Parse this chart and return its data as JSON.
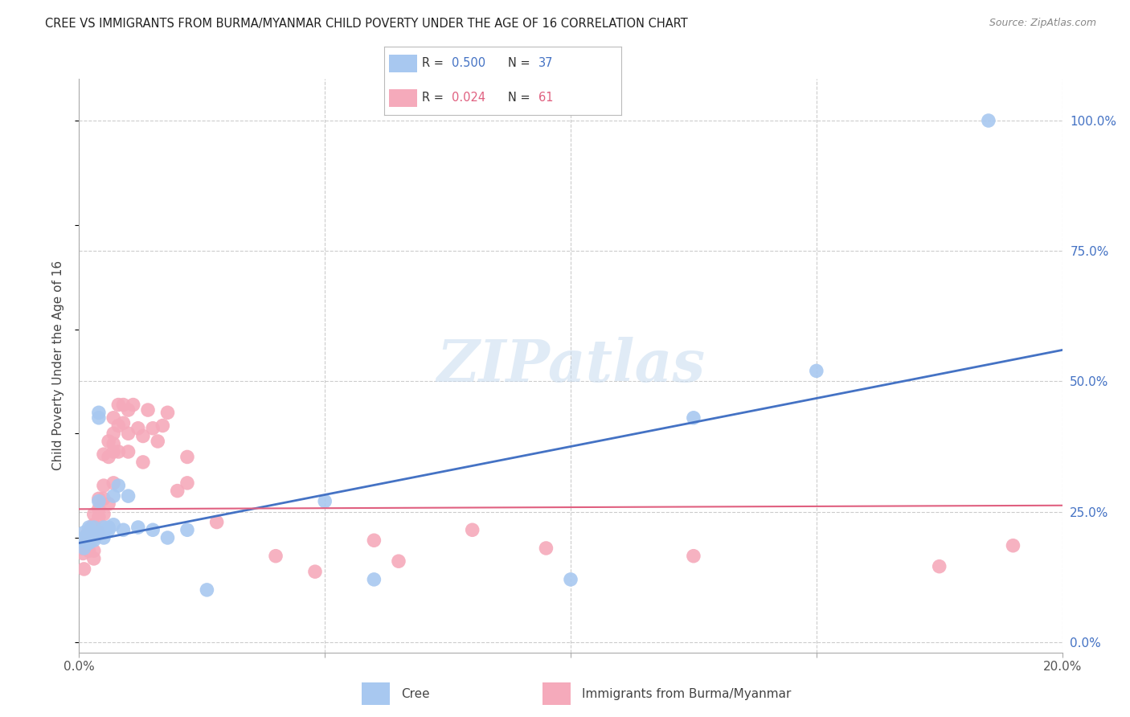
{
  "title": "CREE VS IMMIGRANTS FROM BURMA/MYANMAR CHILD POVERTY UNDER THE AGE OF 16 CORRELATION CHART",
  "source": "Source: ZipAtlas.com",
  "ylabel": "Child Poverty Under the Age of 16",
  "xlim": [
    0.0,
    0.2
  ],
  "ylim": [
    -0.02,
    1.08
  ],
  "yticks_right": [
    0.0,
    0.25,
    0.5,
    0.75,
    1.0
  ],
  "ytick_labels_right": [
    "0.0%",
    "25.0%",
    "50.0%",
    "75.0%",
    "100.0%"
  ],
  "cree_color": "#A8C8F0",
  "burma_color": "#F5AABB",
  "cree_line_color": "#4472C4",
  "burma_line_color": "#E06080",
  "background_color": "#FFFFFF",
  "grid_color": "#CCCCCC",
  "watermark_text": "ZIPatlas",
  "cree_R": "0.500",
  "cree_N": "37",
  "burma_R": "0.024",
  "burma_N": "61",
  "cree_line_x": [
    0.0,
    0.2
  ],
  "cree_line_y": [
    0.19,
    0.56
  ],
  "burma_line_x": [
    0.0,
    0.2
  ],
  "burma_line_y": [
    0.255,
    0.262
  ],
  "cree_scatter_x": [
    0.0005,
    0.001,
    0.001,
    0.001,
    0.0015,
    0.002,
    0.002,
    0.002,
    0.002,
    0.003,
    0.003,
    0.003,
    0.003,
    0.004,
    0.004,
    0.004,
    0.005,
    0.005,
    0.005,
    0.006,
    0.006,
    0.007,
    0.007,
    0.008,
    0.009,
    0.01,
    0.012,
    0.015,
    0.018,
    0.022,
    0.026,
    0.05,
    0.06,
    0.1,
    0.125,
    0.15,
    0.185
  ],
  "cree_scatter_y": [
    0.195,
    0.18,
    0.2,
    0.21,
    0.2,
    0.22,
    0.19,
    0.215,
    0.2,
    0.22,
    0.2,
    0.195,
    0.21,
    0.27,
    0.43,
    0.44,
    0.22,
    0.215,
    0.2,
    0.215,
    0.22,
    0.225,
    0.28,
    0.3,
    0.215,
    0.28,
    0.22,
    0.215,
    0.2,
    0.215,
    0.1,
    0.27,
    0.12,
    0.12,
    0.43,
    0.52,
    1.0
  ],
  "burma_scatter_x": [
    0.0003,
    0.0005,
    0.0008,
    0.001,
    0.001,
    0.0015,
    0.0015,
    0.002,
    0.002,
    0.002,
    0.0025,
    0.003,
    0.003,
    0.003,
    0.003,
    0.004,
    0.004,
    0.004,
    0.004,
    0.005,
    0.005,
    0.005,
    0.005,
    0.006,
    0.006,
    0.006,
    0.007,
    0.007,
    0.007,
    0.007,
    0.007,
    0.008,
    0.008,
    0.008,
    0.009,
    0.009,
    0.01,
    0.01,
    0.01,
    0.011,
    0.012,
    0.013,
    0.013,
    0.014,
    0.015,
    0.016,
    0.017,
    0.018,
    0.02,
    0.022,
    0.022,
    0.028,
    0.04,
    0.048,
    0.06,
    0.065,
    0.08,
    0.095,
    0.125,
    0.175,
    0.19
  ],
  "burma_scatter_y": [
    0.195,
    0.18,
    0.17,
    0.195,
    0.14,
    0.205,
    0.185,
    0.21,
    0.195,
    0.175,
    0.22,
    0.245,
    0.225,
    0.175,
    0.16,
    0.275,
    0.255,
    0.24,
    0.21,
    0.36,
    0.3,
    0.275,
    0.245,
    0.385,
    0.355,
    0.265,
    0.43,
    0.4,
    0.38,
    0.365,
    0.305,
    0.455,
    0.415,
    0.365,
    0.455,
    0.42,
    0.445,
    0.4,
    0.365,
    0.455,
    0.41,
    0.395,
    0.345,
    0.445,
    0.41,
    0.385,
    0.415,
    0.44,
    0.29,
    0.305,
    0.355,
    0.23,
    0.165,
    0.135,
    0.195,
    0.155,
    0.215,
    0.18,
    0.165,
    0.145,
    0.185
  ]
}
